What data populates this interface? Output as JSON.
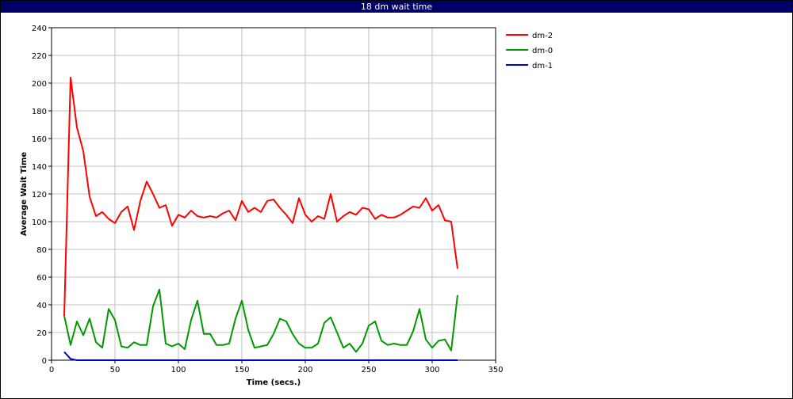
{
  "window": {
    "title": "18 dm wait time"
  },
  "chart_data": {
    "type": "line",
    "title": "18 dm wait time",
    "xlabel": "Time (secs.)",
    "ylabel": "Average Wait Time",
    "xlim": [
      0,
      350
    ],
    "ylim": [
      0,
      240
    ],
    "xticks": [
      0,
      50,
      100,
      150,
      200,
      250,
      300,
      350
    ],
    "yticks": [
      0,
      20,
      40,
      60,
      80,
      100,
      120,
      140,
      160,
      180,
      200,
      220,
      240
    ],
    "grid": true,
    "legend_position": "right",
    "x": [
      10,
      15,
      20,
      25,
      30,
      35,
      40,
      45,
      50,
      55,
      60,
      65,
      70,
      75,
      80,
      85,
      90,
      95,
      100,
      105,
      110,
      115,
      120,
      125,
      130,
      135,
      140,
      145,
      150,
      155,
      160,
      165,
      170,
      175,
      180,
      185,
      190,
      195,
      200,
      205,
      210,
      215,
      220,
      225,
      230,
      235,
      240,
      245,
      250,
      255,
      260,
      265,
      270,
      275,
      280,
      285,
      290,
      295,
      300,
      305,
      310,
      315,
      320
    ],
    "series": [
      {
        "name": "dm-2",
        "color": "#ff0000",
        "values": [
          32,
          204,
          168,
          151,
          118,
          104,
          107,
          102,
          99,
          107,
          111,
          94,
          115,
          129,
          120,
          110,
          112,
          97,
          105,
          103,
          108,
          104,
          103,
          104,
          103,
          106,
          108,
          101,
          115,
          107,
          110,
          107,
          115,
          116,
          110,
          105,
          99,
          117,
          105,
          100,
          104,
          102,
          120,
          100,
          104,
          107,
          105,
          110,
          109,
          102,
          105,
          103,
          103,
          105,
          108,
          111,
          110,
          117,
          108,
          112,
          101,
          100,
          66
        ]
      },
      {
        "name": "dm-0",
        "color": "#009900",
        "values": [
          32,
          11,
          28,
          18,
          30,
          13,
          9,
          37,
          29,
          10,
          9,
          13,
          11,
          11,
          39,
          51,
          12,
          10,
          12,
          8,
          29,
          43,
          19,
          19,
          11,
          11,
          12,
          30,
          43,
          22,
          9,
          10,
          11,
          19,
          30,
          28,
          19,
          12,
          9,
          9,
          12,
          27,
          31,
          20,
          9,
          12,
          6,
          12,
          25,
          28,
          14,
          11,
          12,
          11,
          11,
          21,
          37,
          15,
          9,
          14,
          15,
          7,
          47
        ]
      },
      {
        "name": "dm-1",
        "color": "#0000cc",
        "values": [
          6,
          1,
          0,
          0,
          0,
          0,
          0,
          0,
          0,
          0,
          0,
          0,
          0,
          0,
          0,
          0,
          0,
          0,
          0,
          0,
          0,
          0,
          0,
          0,
          0,
          0,
          0,
          0,
          0,
          0,
          0,
          0,
          0,
          0,
          0,
          0,
          0,
          0,
          0,
          0,
          0,
          0,
          0,
          0,
          0,
          0,
          0,
          0,
          0,
          0,
          0,
          0,
          0,
          0,
          0,
          0,
          0,
          0,
          0,
          0,
          0,
          0,
          0
        ]
      }
    ]
  }
}
